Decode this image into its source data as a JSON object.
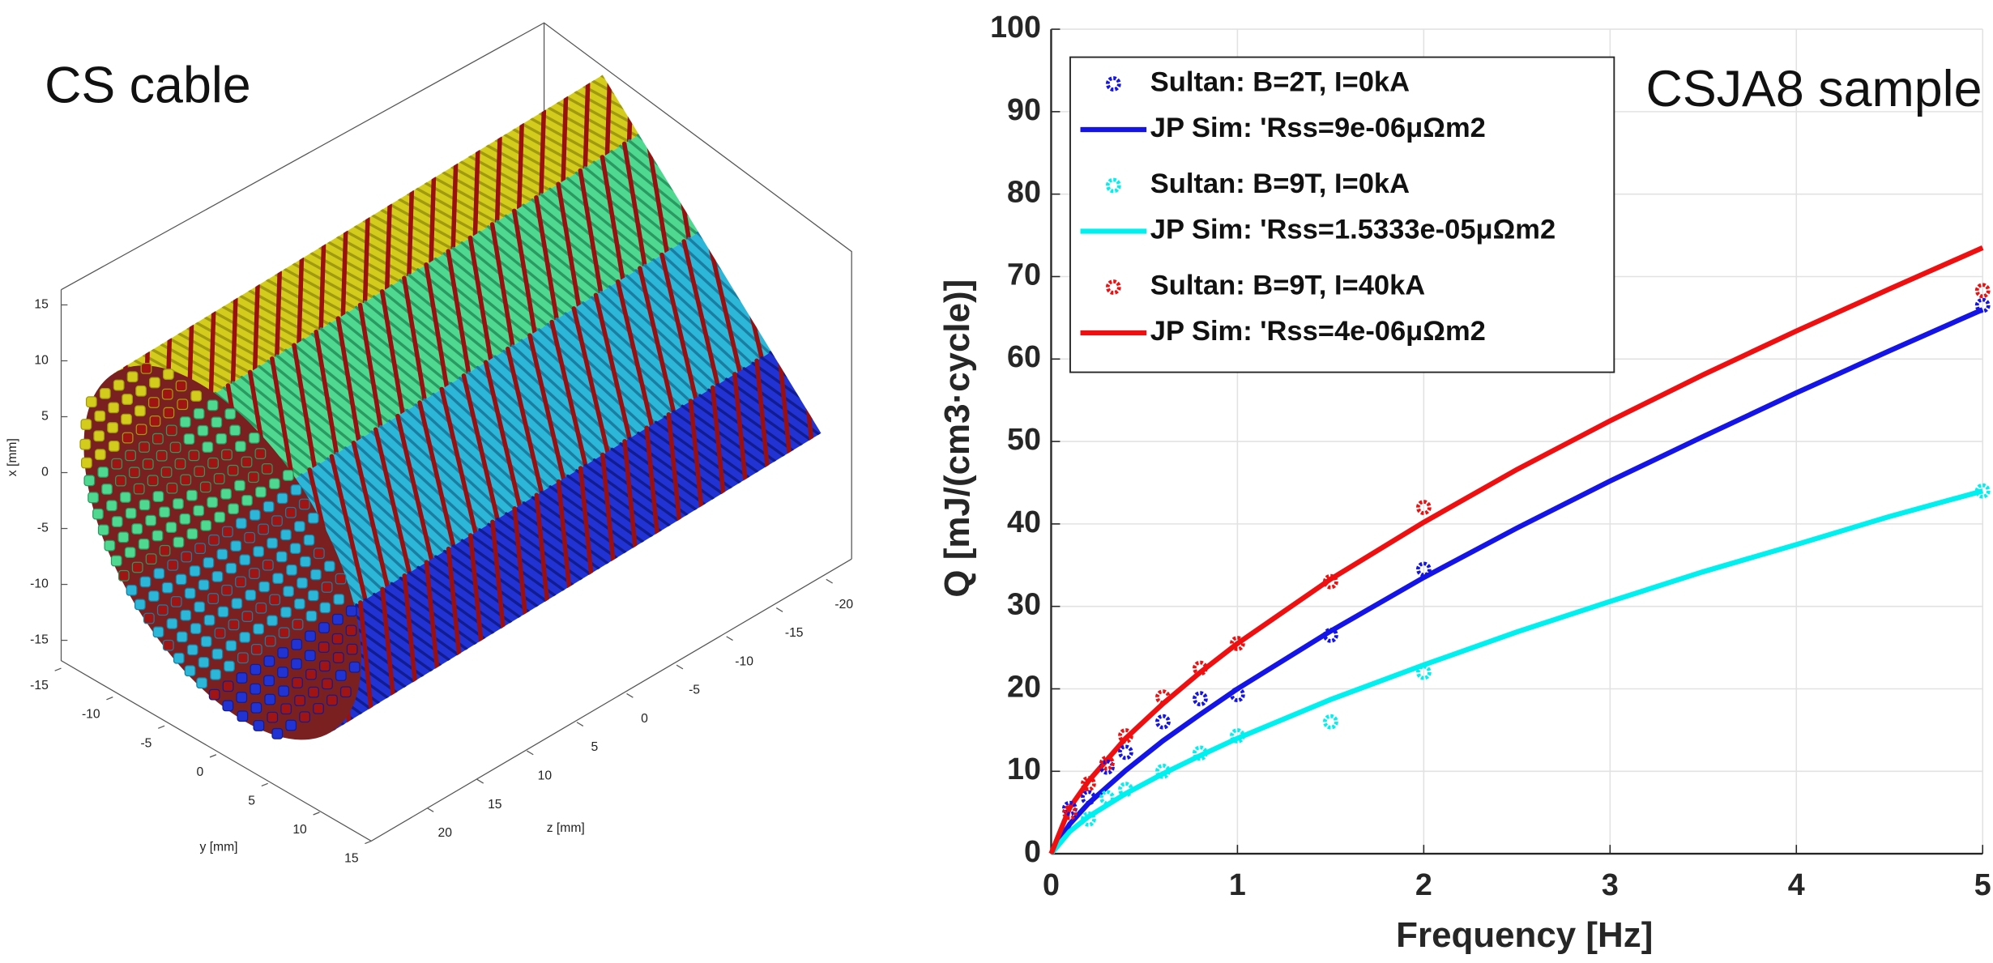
{
  "chart_data": [
    {
      "type": "surface3d",
      "title": "CS cable",
      "xlabel": "x [mm]",
      "ylabel": "y [mm]",
      "zlabel": "z [mm]",
      "xticks": [
        15,
        10,
        5,
        0,
        -5,
        -10,
        -15
      ],
      "yticks": [
        -15,
        -10,
        -5,
        0,
        5,
        10,
        15
      ],
      "zticks": [
        20,
        15,
        10,
        5,
        0,
        -5,
        -10,
        -15,
        -20
      ]
    },
    {
      "type": "line",
      "annotation": "CSJA8 sample",
      "xlabel": "Frequency [Hz]",
      "ylabel": "Q [mJ/(cm3·cycle)]",
      "xlim": [
        0,
        5
      ],
      "ylim": [
        0,
        100
      ],
      "xticks": [
        0,
        1,
        2,
        3,
        4,
        5
      ],
      "yticks": [
        0,
        10,
        20,
        30,
        40,
        50,
        60,
        70,
        80,
        90,
        100
      ],
      "grid": true,
      "legend": "upper left",
      "series": [
        {
          "name": "Sultan: B=2T, I=0kA",
          "color": "#1414e6",
          "mode": "markers",
          "x": [
            0.1,
            0.2,
            0.3,
            0.4,
            0.6,
            0.8,
            1,
            1.5,
            2,
            5
          ],
          "values": [
            5.5,
            6.8,
            10.5,
            12.3,
            16,
            18.8,
            19.3,
            26.5,
            34.5,
            66.5
          ]
        },
        {
          "name": "JP Sim: 'Rss=9e-06μΩm2",
          "color": "#1414e6",
          "mode": "line",
          "x": [
            0,
            0.1,
            0.2,
            0.4,
            0.6,
            0.8,
            1,
            1.5,
            2,
            2.5,
            3,
            3.5,
            4,
            4.5,
            5
          ],
          "values": [
            0,
            3.6,
            6.1,
            10.1,
            13.7,
            16.9,
            20,
            27,
            33.5,
            39.5,
            45.2,
            50.6,
            55.9,
            61,
            66
          ]
        },
        {
          "name": "Sultan: B=9T, I=0kA",
          "color": "#00f0f0",
          "mode": "markers",
          "x": [
            0.2,
            0.3,
            0.4,
            0.6,
            0.8,
            1,
            1.5,
            2,
            5
          ],
          "values": [
            4.2,
            6.8,
            7.8,
            10,
            12.2,
            14.3,
            16,
            22,
            44
          ]
        },
        {
          "name": "JP Sim: 'Rss=1.5333e-05μΩm2",
          "color": "#00f0f0",
          "mode": "line",
          "x": [
            0,
            0.1,
            0.2,
            0.4,
            0.6,
            0.8,
            1,
            1.5,
            2,
            2.5,
            3,
            3.5,
            4,
            4.5,
            5
          ],
          "values": [
            0,
            2.7,
            4.5,
            7.3,
            9.7,
            11.9,
            14,
            18.7,
            22.9,
            26.9,
            30.6,
            34.2,
            37.5,
            40.9,
            44
          ]
        },
        {
          "name": "Sultan: B=9T, I=40kA",
          "color": "#ee1010",
          "mode": "markers",
          "x": [
            0.1,
            0.2,
            0.3,
            0.4,
            0.6,
            0.8,
            1,
            1.5,
            2,
            5
          ],
          "values": [
            5,
            8.5,
            11,
            14.3,
            19,
            22.5,
            25.5,
            33,
            42,
            68.3
          ]
        },
        {
          "name": "JP Sim: 'Rss=4e-06μΩm2",
          "color": "#ee1010",
          "mode": "line",
          "x": [
            0,
            0.1,
            0.2,
            0.4,
            0.6,
            0.8,
            1,
            1.5,
            2,
            2.5,
            3,
            3.5,
            4,
            4.5,
            5
          ],
          "values": [
            0,
            5.6,
            8.8,
            14,
            18.2,
            22,
            25.5,
            33.3,
            40.2,
            46.6,
            52.5,
            58.1,
            63.4,
            68.5,
            73.5
          ]
        }
      ]
    }
  ]
}
